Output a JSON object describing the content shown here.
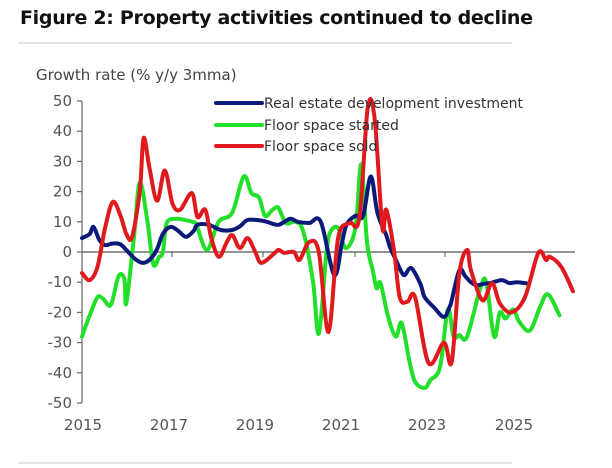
{
  "figure": {
    "title": "Figure 2: Property activities continued to decline"
  },
  "chart_data": {
    "type": "line",
    "title": "Figure 2: Property activities continued to decline",
    "ylabel": "Growth rate (% y/y 3mma)",
    "xlabel": "",
    "ylim": [
      -50,
      50
    ],
    "yticks": [
      50,
      40,
      30,
      20,
      10,
      0,
      -10,
      -20,
      -30,
      -40,
      -50
    ],
    "xlim": [
      2015,
      2026.4
    ],
    "xtick_labels": [
      "2015",
      "2017",
      "2019",
      "2021",
      "2023",
      "2025"
    ],
    "xtick_label_years": [
      2015,
      2017,
      2019,
      2021,
      2023,
      2025
    ],
    "grid": false,
    "legend_position": "top-center",
    "series": [
      {
        "name": "Real estate development investment",
        "color": "#0b1a7a",
        "points": [
          [
            2015.0,
            4.6
          ],
          [
            2015.2,
            6
          ],
          [
            2015.3,
            8.3
          ],
          [
            2015.45,
            4
          ],
          [
            2015.6,
            2.3
          ],
          [
            2015.8,
            2.8
          ],
          [
            2016.0,
            2.5
          ],
          [
            2016.2,
            0
          ],
          [
            2016.4,
            -2.5
          ],
          [
            2016.6,
            -3.6
          ],
          [
            2016.8,
            -2
          ],
          [
            2016.95,
            1
          ],
          [
            2017.1,
            6
          ],
          [
            2017.3,
            8.3
          ],
          [
            2017.5,
            7
          ],
          [
            2017.7,
            5
          ],
          [
            2017.9,
            7
          ],
          [
            2018.0,
            9
          ],
          [
            2018.3,
            9
          ],
          [
            2018.6,
            7.3
          ],
          [
            2018.9,
            7.3
          ],
          [
            2019.1,
            8.5
          ],
          [
            2019.3,
            10.6
          ],
          [
            2019.6,
            10.5
          ],
          [
            2019.8,
            10
          ],
          [
            2020.1,
            9
          ],
          [
            2020.4,
            11
          ],
          [
            2020.6,
            10
          ],
          [
            2020.9,
            9.6
          ],
          [
            2021.2,
            10
          ],
          [
            2021.55,
            -7.6
          ],
          [
            2021.75,
            3
          ],
          [
            2021.87,
            9
          ],
          [
            2022.1,
            12
          ],
          [
            2022.3,
            12
          ],
          [
            2022.5,
            25
          ],
          [
            2022.67,
            13
          ],
          [
            2022.9,
            5.6
          ],
          [
            2023.0,
            1.5
          ],
          [
            2023.15,
            -2.6
          ],
          [
            2023.35,
            -7.6
          ],
          [
            2023.5,
            -5.5
          ],
          [
            2023.6,
            -6
          ],
          [
            2023.8,
            -11
          ],
          [
            2023.9,
            -15
          ],
          [
            2024.15,
            -18.5
          ],
          [
            2024.4,
            -21.5
          ],
          [
            2024.55,
            -18
          ],
          [
            2024.6,
            -16
          ],
          [
            2024.8,
            -6
          ],
          [
            2024.95,
            -8
          ],
          [
            2025.1,
            -10
          ],
          [
            2025.25,
            -11
          ],
          [
            2025.45,
            -10.5
          ],
          [
            2025.6,
            -10.3
          ],
          [
            2025.9,
            -9.3
          ],
          [
            2026.1,
            -10.3
          ],
          [
            2026.3,
            -10
          ],
          [
            2026.6,
            -10.5
          ]
        ]
      },
      {
        "name": "Floor space started",
        "color": "#22e02a",
        "points": [
          [
            2015.0,
            -28
          ],
          [
            2015.2,
            -21
          ],
          [
            2015.4,
            -15
          ],
          [
            2015.55,
            -15.5
          ],
          [
            2015.75,
            -17.5
          ],
          [
            2015.95,
            -8
          ],
          [
            2016.1,
            -9
          ],
          [
            2016.15,
            -17
          ],
          [
            2016.35,
            5
          ],
          [
            2016.5,
            23
          ],
          [
            2016.7,
            10
          ],
          [
            2016.85,
            -4
          ],
          [
            2017.0,
            -1.7
          ],
          [
            2017.1,
            0
          ],
          [
            2017.2,
            9.6
          ],
          [
            2017.45,
            11
          ],
          [
            2017.7,
            10.5
          ],
          [
            2017.95,
            9.6
          ],
          [
            2018.0,
            8
          ],
          [
            2018.25,
            0.7
          ],
          [
            2018.55,
            10
          ],
          [
            2018.9,
            13
          ],
          [
            2019.2,
            25
          ],
          [
            2019.4,
            19.5
          ],
          [
            2019.6,
            18
          ],
          [
            2019.75,
            12
          ],
          [
            2019.95,
            14
          ],
          [
            2020.1,
            14.6
          ],
          [
            2020.3,
            9.6
          ],
          [
            2020.55,
            10
          ],
          [
            2020.75,
            6.6
          ],
          [
            2021.0,
            -10
          ],
          [
            2021.15,
            -27
          ],
          [
            2021.35,
            0
          ],
          [
            2021.45,
            6.6
          ],
          [
            2021.65,
            8
          ],
          [
            2021.85,
            1.3
          ],
          [
            2022.1,
            8
          ],
          [
            2022.25,
            29
          ],
          [
            2022.4,
            3.3
          ],
          [
            2022.55,
            -6
          ],
          [
            2022.65,
            -12
          ],
          [
            2022.75,
            -10.3
          ],
          [
            2022.95,
            -21.5
          ],
          [
            2023.15,
            -28
          ],
          [
            2023.3,
            -23.5
          ],
          [
            2023.5,
            -36
          ],
          [
            2023.65,
            -43
          ],
          [
            2023.9,
            -45
          ],
          [
            2024.05,
            -42.4
          ],
          [
            2024.3,
            -38
          ],
          [
            2024.5,
            -19
          ],
          [
            2024.65,
            -28
          ],
          [
            2024.8,
            -27.5
          ],
          [
            2025.0,
            -28
          ],
          [
            2025.35,
            -11.6
          ],
          [
            2025.5,
            -10.3
          ],
          [
            2025.7,
            -28
          ],
          [
            2025.85,
            -20
          ],
          [
            2026.0,
            -22
          ],
          [
            2026.2,
            -19
          ],
          [
            2026.35,
            -23
          ],
          [
            2026.63,
            -26
          ],
          [
            2026.9,
            -18
          ],
          [
            2027.1,
            -14
          ],
          [
            2027.4,
            -21
          ]
        ]
      },
      {
        "name": "Floor space sold",
        "color": "#e0191d",
        "points": [
          [
            2015.0,
            -7
          ],
          [
            2015.2,
            -9.3
          ],
          [
            2015.4,
            -5
          ],
          [
            2015.6,
            8
          ],
          [
            2015.8,
            16.6
          ],
          [
            2016.0,
            12
          ],
          [
            2016.15,
            6
          ],
          [
            2016.3,
            5
          ],
          [
            2016.5,
            20
          ],
          [
            2016.6,
            37.7
          ],
          [
            2016.75,
            28
          ],
          [
            2016.95,
            17
          ],
          [
            2017.15,
            27
          ],
          [
            2017.35,
            16
          ],
          [
            2017.55,
            14
          ],
          [
            2017.85,
            19.5
          ],
          [
            2018.0,
            11.6
          ],
          [
            2018.2,
            14
          ],
          [
            2018.35,
            5
          ],
          [
            2018.55,
            -1.6
          ],
          [
            2018.75,
            3
          ],
          [
            2018.9,
            5.6
          ],
          [
            2019.1,
            1.3
          ],
          [
            2019.3,
            4.6
          ],
          [
            2019.5,
            0
          ],
          [
            2019.65,
            -3.6
          ],
          [
            2019.95,
            -1
          ],
          [
            2020.1,
            0.7
          ],
          [
            2020.25,
            -0.3
          ],
          [
            2020.5,
            0
          ],
          [
            2020.65,
            -2.6
          ],
          [
            2020.9,
            3.3
          ],
          [
            2021.15,
            0
          ],
          [
            2021.4,
            -26.5
          ],
          [
            2021.65,
            4.6
          ],
          [
            2021.95,
            9.6
          ],
          [
            2022.2,
            11.3
          ],
          [
            2022.42,
            47.7
          ],
          [
            2022.6,
            44
          ],
          [
            2022.8,
            8
          ],
          [
            2022.9,
            14
          ],
          [
            2023.1,
            0.7
          ],
          [
            2023.25,
            -15
          ],
          [
            2023.45,
            -16.5
          ],
          [
            2023.65,
            -15
          ],
          [
            2024.0,
            -36.8
          ],
          [
            2024.4,
            -30
          ],
          [
            2024.6,
            -36.4
          ],
          [
            2024.8,
            -7
          ],
          [
            2025.0,
            0.7
          ],
          [
            2025.1,
            -6
          ],
          [
            2025.4,
            -16
          ],
          [
            2025.65,
            -10.3
          ],
          [
            2025.85,
            -17
          ],
          [
            2026.15,
            -20
          ],
          [
            2026.5,
            -15
          ],
          [
            2026.85,
            -0.3
          ],
          [
            2027.05,
            -2.6
          ],
          [
            2027.15,
            -1.6
          ],
          [
            2027.45,
            -5
          ],
          [
            2027.75,
            -13
          ]
        ]
      }
    ]
  }
}
